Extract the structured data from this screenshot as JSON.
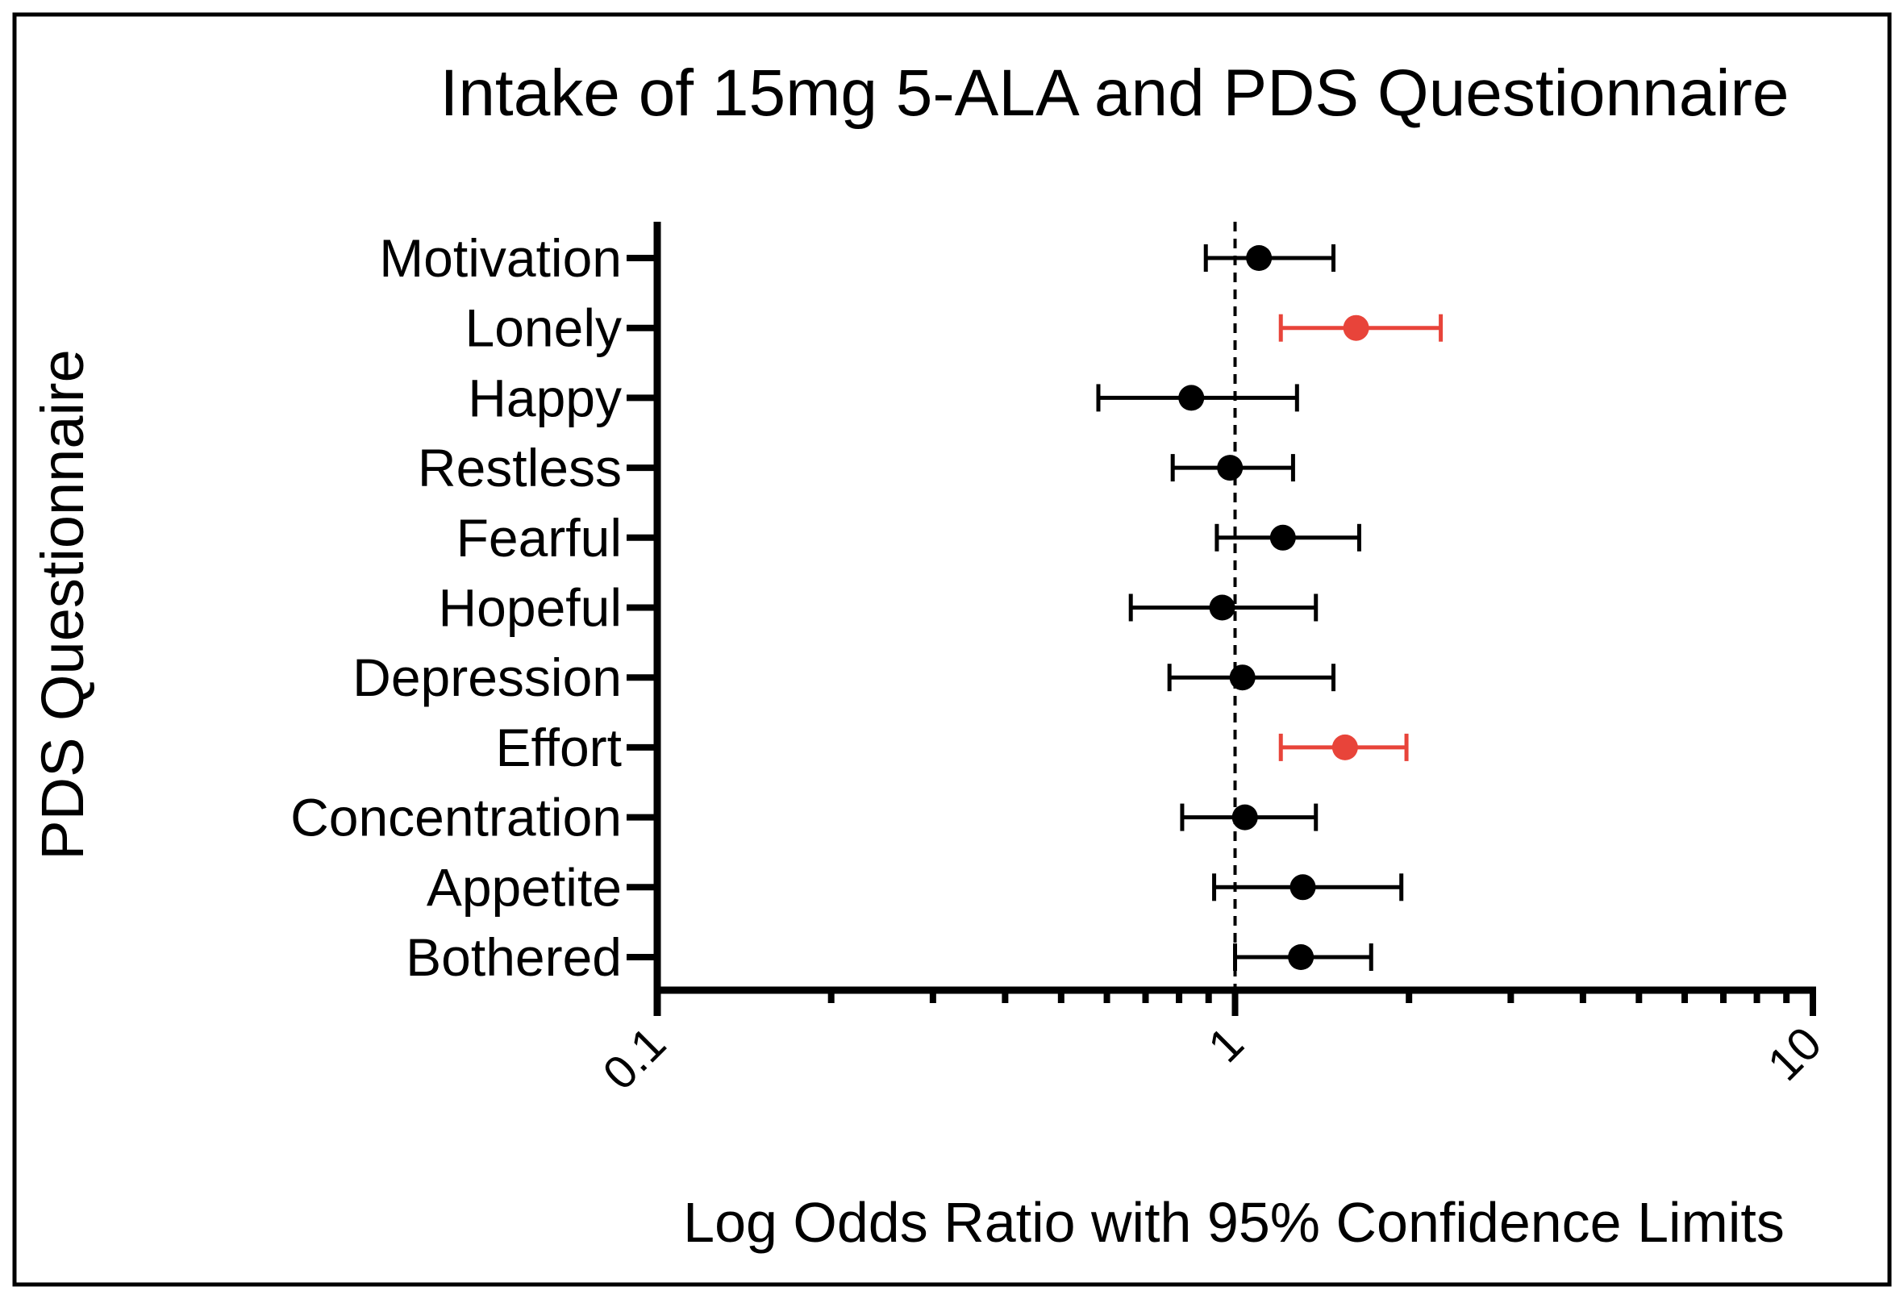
{
  "chart_data": {
    "type": "forest",
    "title": "Intake of 15mg 5-ALA and PDS Questionnaire",
    "xlabel": "Log Odds Ratio with 95% Confidence Limits",
    "ylabel": "PDS Questionnaire",
    "xscale": "log",
    "xlim": [
      0.1,
      10
    ],
    "xticks": [
      {
        "value": 0.1,
        "label": "0.1"
      },
      {
        "value": 1,
        "label": "1"
      },
      {
        "value": 10,
        "label": "10"
      }
    ],
    "reference_line": 1,
    "colors": {
      "default": "#000000",
      "highlight": "#e8443a"
    },
    "rows": [
      {
        "label": "Motivation",
        "or": 1.1,
        "lo": 0.89,
        "hi": 1.48,
        "highlight": false
      },
      {
        "label": "Lonely",
        "or": 1.62,
        "lo": 1.2,
        "hi": 2.27,
        "highlight": true
      },
      {
        "label": "Happy",
        "or": 0.84,
        "lo": 0.58,
        "hi": 1.28,
        "highlight": false
      },
      {
        "label": "Restless",
        "or": 0.98,
        "lo": 0.78,
        "hi": 1.26,
        "highlight": false
      },
      {
        "label": "Fearful",
        "or": 1.21,
        "lo": 0.93,
        "hi": 1.64,
        "highlight": false
      },
      {
        "label": "Hopeful",
        "or": 0.95,
        "lo": 0.66,
        "hi": 1.38,
        "highlight": false
      },
      {
        "label": "Depression",
        "or": 1.03,
        "lo": 0.77,
        "hi": 1.48,
        "highlight": false
      },
      {
        "label": "Effort",
        "or": 1.55,
        "lo": 1.2,
        "hi": 1.98,
        "highlight": true
      },
      {
        "label": "Concentration",
        "or": 1.04,
        "lo": 0.81,
        "hi": 1.38,
        "highlight": false
      },
      {
        "label": "Appetite",
        "or": 1.31,
        "lo": 0.92,
        "hi": 1.94,
        "highlight": false
      },
      {
        "label": "Bothered",
        "or": 1.3,
        "lo": 1.0,
        "hi": 1.72,
        "highlight": false
      }
    ]
  }
}
